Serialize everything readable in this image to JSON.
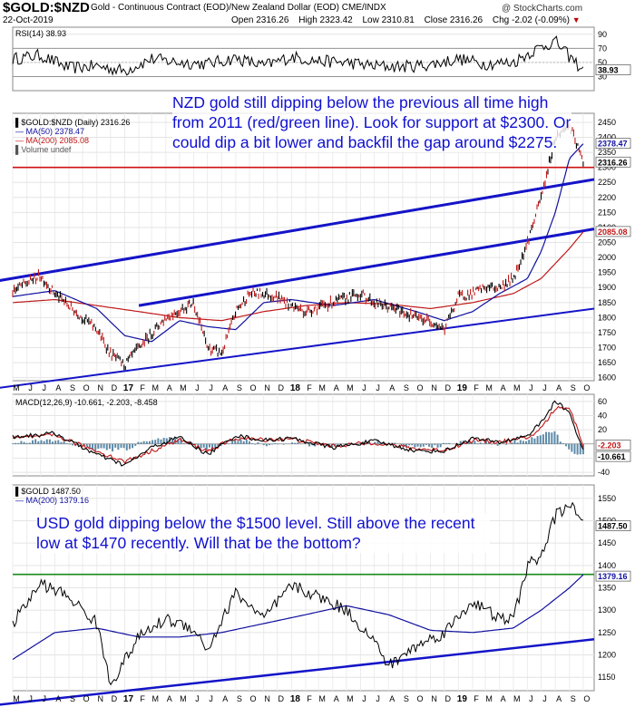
{
  "header": {
    "symbol": "$GOLD:$NZD",
    "contract": "Gold - Continuous Contract (EOD)/New Zealand Dollar (EOD) CME/INDX",
    "date": "22-Oct-2019",
    "open_label": "Open",
    "open": "2316.26",
    "high_label": "High",
    "high": "2323.42",
    "low_label": "Low",
    "low": "2310.81",
    "close_label": "Close",
    "close": "2316.26",
    "chg_label": "Chg",
    "chg": "-2.02 (-0.09%)",
    "brand": "@ StockCharts.com"
  },
  "colors": {
    "price": "#000000",
    "ma_short": "#1010a0",
    "ma_long": "#c01818",
    "trend_channel": "#1414c8",
    "horizontal_red": "#d01010",
    "horizontal_green": "#1a8a1a",
    "annotation": "#1010d0"
  },
  "annotations": {
    "nzd": "NZD gold still dipping below the previous all time high from 2011 (red/green line). Look for support at $2300. Or could dip a bit lower and backfil the gap around $2275.",
    "usd": "USD gold dipping below the $1500 level. Still above the recent low at $1470 recently. Will that be the bottom?"
  },
  "chart_data": [
    {
      "type": "line",
      "panel": "RSI",
      "label": "RSI(14) 38.93",
      "y_ticks": [
        90,
        70,
        50,
        30
      ],
      "ylim": [
        10,
        100
      ],
      "reference_lines": [
        70,
        30
      ],
      "last_value": 38.93,
      "x": [
        "2016-05",
        "2016-07",
        "2016-09",
        "2016-11",
        "2017-01",
        "2017-03",
        "2017-05",
        "2017-07",
        "2017-09",
        "2017-11",
        "2018-01",
        "2018-03",
        "2018-05",
        "2018-07",
        "2018-09",
        "2018-11",
        "2019-01",
        "2019-03",
        "2019-05",
        "2019-06",
        "2019-07",
        "2019-08",
        "2019-09",
        "2019-10"
      ],
      "values": [
        55,
        60,
        42,
        45,
        38,
        55,
        50,
        48,
        56,
        45,
        58,
        52,
        50,
        45,
        44,
        47,
        55,
        48,
        50,
        62,
        72,
        80,
        58,
        38.93
      ]
    },
    {
      "type": "line",
      "panel": "NZD Gold (Daily)",
      "label": "$GOLD:$NZD (Daily) 2316.26",
      "legend": [
        "$GOLD:$NZD (Daily) 2316.26",
        "MA(50) 2378.47",
        "MA(200) 2085.08",
        "Volume undef"
      ],
      "y_ticks": [
        2450,
        2400,
        2350,
        2300,
        2250,
        2200,
        2150,
        2100,
        2050,
        2000,
        1950,
        1900,
        1850,
        1800,
        1750,
        1700,
        1650,
        1600
      ],
      "ylim": [
        1590,
        2480
      ],
      "x_ticks": [
        "M",
        "J",
        "J",
        "A",
        "S",
        "O",
        "N",
        "D",
        "17",
        "F",
        "M",
        "A",
        "M",
        "J",
        "J",
        "A",
        "S",
        "O",
        "N",
        "D",
        "18",
        "F",
        "M",
        "A",
        "M",
        "J",
        "J",
        "A",
        "S",
        "O",
        "N",
        "D",
        "19",
        "F",
        "M",
        "A",
        "M",
        "J",
        "J",
        "A",
        "S",
        "O"
      ],
      "series": [
        {
          "name": "$GOLD:$NZD (Daily) 2316.26",
          "x": [
            "2016-05",
            "2016-07",
            "2016-08",
            "2016-10",
            "2016-11",
            "2016-12",
            "2017-01",
            "2017-02",
            "2017-04",
            "2017-06",
            "2017-07",
            "2017-08",
            "2017-09",
            "2017-10",
            "2017-11",
            "2017-12",
            "2018-01",
            "2018-02",
            "2018-04",
            "2018-06",
            "2018-07",
            "2018-09",
            "2018-10",
            "2018-11",
            "2018-12",
            "2019-01",
            "2019-02",
            "2019-03",
            "2019-04",
            "2019-05",
            "2019-06",
            "2019-07",
            "2019-08",
            "2019-09",
            "2019-10"
          ],
          "values": [
            1890,
            1940,
            1880,
            1800,
            1760,
            1680,
            1640,
            1700,
            1800,
            1850,
            1700,
            1680,
            1820,
            1880,
            1880,
            1870,
            1840,
            1820,
            1850,
            1880,
            1850,
            1820,
            1800,
            1790,
            1760,
            1870,
            1880,
            1900,
            1900,
            1930,
            2050,
            2200,
            2400,
            2440,
            2316.26
          ]
        },
        {
          "name": "MA(50) 2378.47",
          "x": [
            "2016-05",
            "2016-08",
            "2016-11",
            "2017-01",
            "2017-03",
            "2017-05",
            "2017-07",
            "2017-09",
            "2017-11",
            "2018-01",
            "2018-04",
            "2018-07",
            "2018-10",
            "2018-12",
            "2019-02",
            "2019-04",
            "2019-06",
            "2019-07",
            "2019-08",
            "2019-09",
            "2019-10"
          ],
          "values": [
            1870,
            1890,
            1830,
            1740,
            1720,
            1790,
            1770,
            1760,
            1850,
            1860,
            1840,
            1860,
            1820,
            1790,
            1820,
            1880,
            1930,
            2020,
            2150,
            2330,
            2378.47
          ]
        },
        {
          "name": "MA(200) 2085.08",
          "x": [
            "2016-05",
            "2016-08",
            "2016-11",
            "2017-02",
            "2017-05",
            "2017-08",
            "2017-11",
            "2018-02",
            "2018-05",
            "2018-08",
            "2018-11",
            "2019-02",
            "2019-05",
            "2019-07",
            "2019-09",
            "2019-10"
          ],
          "values": [
            1850,
            1860,
            1840,
            1820,
            1800,
            1790,
            1820,
            1840,
            1850,
            1845,
            1830,
            1850,
            1880,
            1930,
            2030,
            2085.08
          ]
        }
      ],
      "horizontal_lines": [
        {
          "value": 2300,
          "color": "red/green"
        }
      ],
      "last_labels": [
        "2378.47",
        "2350",
        "2316.26",
        "2085.08",
        "2100"
      ]
    },
    {
      "type": "line",
      "panel": "MACD",
      "label": "MACD(12,26,9) -10.661, -2.203, -8.458",
      "y_ticks": [
        60,
        40,
        20,
        -20,
        -40
      ],
      "ylim": [
        -45,
        70
      ],
      "series": [
        {
          "name": "MACD",
          "x": [
            "2016-05",
            "2016-08",
            "2016-11",
            "2017-01",
            "2017-03",
            "2017-05",
            "2017-07",
            "2017-09",
            "2017-11",
            "2018-01",
            "2018-04",
            "2018-07",
            "2018-10",
            "2018-12",
            "2019-02",
            "2019-04",
            "2019-06",
            "2019-07",
            "2019-08",
            "2019-09",
            "2019-10"
          ],
          "values": [
            10,
            15,
            -15,
            -30,
            -5,
            10,
            -15,
            12,
            5,
            8,
            -5,
            4,
            -10,
            -10,
            8,
            2,
            12,
            30,
            60,
            45,
            -10.661
          ]
        },
        {
          "name": "Signal",
          "x": [
            "2016-05",
            "2016-08",
            "2016-11",
            "2017-01",
            "2017-03",
            "2017-05",
            "2017-07",
            "2017-09",
            "2017-11",
            "2018-01",
            "2018-04",
            "2018-07",
            "2018-10",
            "2018-12",
            "2019-02",
            "2019-04",
            "2019-06",
            "2019-07",
            "2019-08",
            "2019-09",
            "2019-10"
          ],
          "values": [
            8,
            12,
            -10,
            -25,
            -10,
            6,
            -10,
            8,
            6,
            7,
            -3,
            2,
            -7,
            -9,
            5,
            3,
            8,
            22,
            50,
            52,
            -2.203
          ]
        }
      ],
      "histogram_last": -8.458,
      "last_labels": [
        "-2.203",
        "-10.661"
      ]
    },
    {
      "type": "line",
      "panel": "USD Gold",
      "label": "$GOLD 1487.50",
      "legend": [
        "$GOLD 1487.50",
        "MA(200) 1379.16"
      ],
      "y_ticks": [
        1550,
        1500,
        1450,
        1400,
        1350,
        1300,
        1250,
        1200,
        1150
      ],
      "ylim": [
        1120,
        1580
      ],
      "x_ticks": [
        "M",
        "J",
        "J",
        "A",
        "S",
        "O",
        "N",
        "D",
        "17",
        "F",
        "M",
        "A",
        "M",
        "J",
        "J",
        "A",
        "S",
        "O",
        "N",
        "D",
        "18",
        "F",
        "M",
        "A",
        "M",
        "J",
        "J",
        "A",
        "S",
        "O",
        "N",
        "D",
        "19",
        "F",
        "M",
        "A",
        "M",
        "J",
        "J",
        "A",
        "S",
        "O"
      ],
      "series": [
        {
          "name": "$GOLD 1487.50",
          "x": [
            "2016-05",
            "2016-07",
            "2016-09",
            "2016-11",
            "2016-12",
            "2017-02",
            "2017-04",
            "2017-06",
            "2017-07",
            "2017-09",
            "2017-11",
            "2018-01",
            "2018-03",
            "2018-05",
            "2018-07",
            "2018-08",
            "2018-10",
            "2018-12",
            "2019-02",
            "2019-04",
            "2019-05",
            "2019-06",
            "2019-07",
            "2019-08",
            "2019-09",
            "2019-10"
          ],
          "values": [
            1270,
            1360,
            1330,
            1270,
            1135,
            1240,
            1280,
            1260,
            1210,
            1340,
            1280,
            1355,
            1330,
            1300,
            1230,
            1175,
            1220,
            1250,
            1320,
            1280,
            1280,
            1400,
            1420,
            1510,
            1540,
            1487.5
          ]
        },
        {
          "name": "MA(200) 1379.16",
          "x": [
            "2016-05",
            "2016-08",
            "2016-11",
            "2017-02",
            "2017-05",
            "2017-08",
            "2017-11",
            "2018-02",
            "2018-05",
            "2018-08",
            "2018-11",
            "2019-02",
            "2019-05",
            "2019-07",
            "2019-09",
            "2019-10"
          ],
          "values": [
            1190,
            1250,
            1260,
            1240,
            1240,
            1250,
            1270,
            1290,
            1310,
            1290,
            1255,
            1250,
            1260,
            1300,
            1350,
            1379.16
          ]
        }
      ],
      "horizontal_lines": [
        {
          "value": 1380,
          "color": "green"
        }
      ],
      "last_labels": [
        "1487.50",
        "1379.16"
      ]
    }
  ]
}
